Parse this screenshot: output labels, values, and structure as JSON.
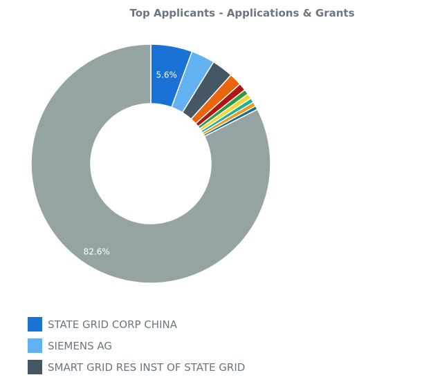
{
  "chart_data": {
    "type": "pie",
    "title": "Top Applicants - Applications & Grants",
    "legend_position": "bottom",
    "series": [
      {
        "name": "STATE GRID CORP CHINA",
        "value": 5.6,
        "color": "#1a73d4",
        "label": "5.6%"
      },
      {
        "name": "SIEMENS AG",
        "value": 3.2,
        "color": "#62b2f2"
      },
      {
        "name": "SMART GRID RES INST OF STATE GRID",
        "value": 2.9,
        "color": "#455762"
      },
      {
        "color": "#e9660c",
        "value": 1.7
      },
      {
        "color": "#b31414",
        "value": 1.0
      },
      {
        "color": "#2f9b3f",
        "value": 0.7
      },
      {
        "color": "#f4d535",
        "value": 0.7
      },
      {
        "color": "#1ab294",
        "value": 0.6
      },
      {
        "color": "#f19818",
        "value": 0.6
      },
      {
        "color": "#1c6b86",
        "value": 0.5
      },
      {
        "name": "",
        "value": 82.6,
        "color": "#95a4a3",
        "label": "82.6%"
      }
    ]
  },
  "legend": [
    {
      "label": "STATE GRID CORP CHINA",
      "color": "#1a73d4"
    },
    {
      "label": "SIEMENS AG",
      "color": "#62b2f2"
    },
    {
      "label": "SMART GRID RES INST OF STATE GRID",
      "color": "#455762"
    }
  ]
}
